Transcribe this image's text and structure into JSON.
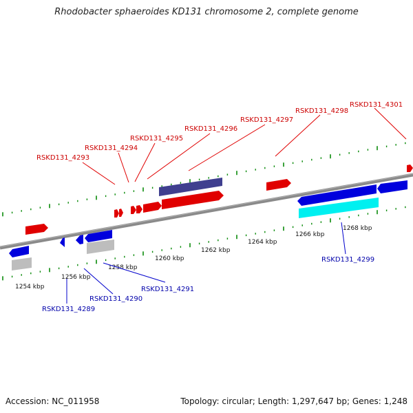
{
  "title": "Rhodobacter sphaeroides KD131 chromosome 2, complete genome",
  "footer": {
    "accession": "Accession: NC_011958",
    "stats": "Topology: circular; Length: 1,297,647 bp; Genes: 1,248"
  },
  "colors": {
    "forward": "#ff0000",
    "reverse": "#0000ff",
    "backbone": "#888888",
    "tick_forward": "#008000",
    "tick_reverse": "#008000",
    "label_forward": "#cc0000",
    "label_reverse": "#0000aa",
    "dark_feature": "#3f3f8f",
    "cyan_feature": "#00ffff",
    "grey_feature": "#bbbbbb"
  },
  "scale": {
    "labels": [
      "1254 kbp",
      "1256 kbp",
      "1258 kbp",
      "1260 kbp",
      "1262 kbp",
      "1264 kbp",
      "1266 kbp",
      "1268 kbp"
    ]
  },
  "gene_labels": {
    "top": [
      "RSKD131_4293",
      "RSKD131_4294",
      "RSKD131_4295",
      "RSKD131_4296",
      "RSKD131_4297",
      "RSKD131_4298",
      "RSKD131_4301"
    ],
    "bottom": [
      "RSKD131_4289",
      "RSKD131_4290",
      "RSKD131_4291",
      "RSKD131_4299"
    ]
  }
}
